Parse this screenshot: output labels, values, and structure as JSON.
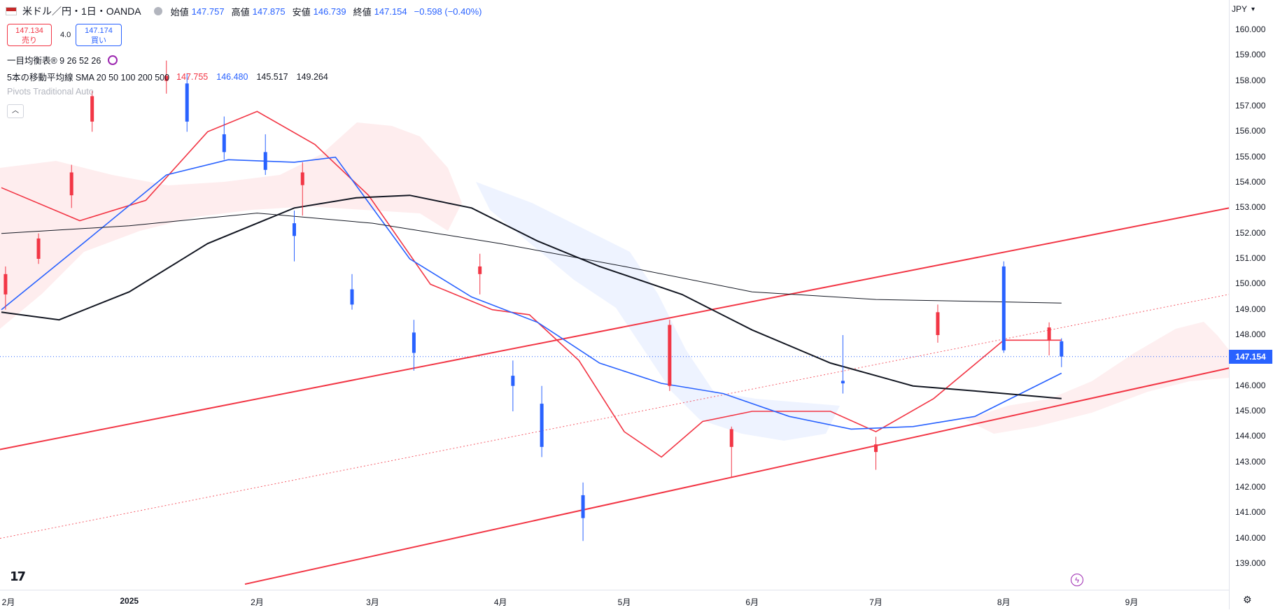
{
  "header": {
    "symbol": "米ドル／円・1日・OANDA",
    "open_label": "始値",
    "open": "147.757",
    "high_label": "高値",
    "high": "147.875",
    "low_label": "安値",
    "low": "146.739",
    "close_label": "終値",
    "close": "147.154",
    "change": "−0.598 (−0.40%)"
  },
  "trade": {
    "sell_price": "147.134",
    "sell_label": "売り",
    "spread": "4.0",
    "buy_price": "147.174",
    "buy_label": "買い"
  },
  "indicators": {
    "ichimoku": "一目均衡表® 9 26 52 26",
    "ma_label": "5本の移動平均線 SMA 20 50 100 200 500",
    "ma_vals": [
      "147.755",
      "146.480",
      "145.517",
      "149.264"
    ],
    "ma_colors": [
      "#f23645",
      "#2962ff",
      "#131722",
      "#131722"
    ],
    "pivots": "Pivots Traditional Auto",
    "collapse_icon": "chevron-up-icon"
  },
  "price_axis": {
    "currency": "JPY",
    "ticks": [
      "160.000",
      "159.000",
      "158.000",
      "157.000",
      "156.000",
      "155.000",
      "154.000",
      "153.000",
      "152.000",
      "151.000",
      "150.000",
      "149.000",
      "148.000",
      "147.000",
      "146.000",
      "145.000",
      "144.000",
      "143.000",
      "142.000",
      "141.000",
      "140.000",
      "139.000"
    ],
    "current_price": "147.154",
    "current_color": "#2962ff"
  },
  "time_axis": {
    "labels": [
      "2月",
      "2025",
      "2月",
      "3月",
      "4月",
      "5月",
      "6月",
      "7月",
      "8月",
      "9月"
    ]
  },
  "chart_data": {
    "type": "candlestick",
    "series_colors": {
      "up": "#f23645",
      "down": "#2962ff",
      "sma20": "#f23645",
      "sma50": "#2962ff",
      "sma100": "#131722",
      "sma200": "#131722"
    },
    "ylim": [
      138.5,
      160.5
    ],
    "candles": [
      {
        "x": "2024-12-02",
        "o": 149.6,
        "h": 150.7,
        "l": 149.0,
        "c": 150.4
      },
      {
        "x": "2024-12-10",
        "o": 151.0,
        "h": 152.0,
        "l": 150.8,
        "c": 151.8
      },
      {
        "x": "2024-12-18",
        "o": 153.5,
        "h": 154.7,
        "l": 153.0,
        "c": 154.4
      },
      {
        "x": "2024-12-23",
        "o": 156.4,
        "h": 157.6,
        "l": 156.0,
        "c": 157.4
      },
      {
        "x": "2025-01-10",
        "o": 158.0,
        "h": 158.8,
        "l": 157.5,
        "c": 158.2
      },
      {
        "x": "2025-01-15",
        "o": 157.9,
        "h": 158.3,
        "l": 156.0,
        "c": 156.4
      },
      {
        "x": "2025-01-24",
        "o": 155.9,
        "h": 156.6,
        "l": 154.9,
        "c": 155.2
      },
      {
        "x": "2025-02-03",
        "o": 155.2,
        "h": 155.9,
        "l": 154.3,
        "c": 154.5
      },
      {
        "x": "2025-02-10",
        "o": 152.4,
        "h": 152.9,
        "l": 150.9,
        "c": 151.9
      },
      {
        "x": "2025-02-12",
        "o": 153.9,
        "h": 154.8,
        "l": 152.7,
        "c": 154.4
      },
      {
        "x": "2025-02-24",
        "o": 149.8,
        "h": 150.4,
        "l": 149.0,
        "c": 149.2
      },
      {
        "x": "2025-03-11",
        "o": 148.1,
        "h": 148.6,
        "l": 146.6,
        "c": 147.3
      },
      {
        "x": "2025-03-27",
        "o": 150.4,
        "h": 151.2,
        "l": 149.6,
        "c": 150.7
      },
      {
        "x": "2025-04-04",
        "o": 146.4,
        "h": 147.0,
        "l": 145.0,
        "c": 146.0
      },
      {
        "x": "2025-04-11",
        "o": 145.3,
        "h": 146.0,
        "l": 143.2,
        "c": 143.6
      },
      {
        "x": "2025-04-21",
        "o": 141.7,
        "h": 142.2,
        "l": 139.9,
        "c": 140.8
      },
      {
        "x": "2025-05-12",
        "o": 146.0,
        "h": 148.6,
        "l": 145.8,
        "c": 148.4
      },
      {
        "x": "2025-05-27",
        "o": 143.6,
        "h": 144.4,
        "l": 142.4,
        "c": 144.3
      },
      {
        "x": "2025-06-23",
        "o": 146.2,
        "h": 148.0,
        "l": 145.7,
        "c": 146.1
      },
      {
        "x": "2025-07-01",
        "o": 143.4,
        "h": 144.0,
        "l": 142.7,
        "c": 143.7
      },
      {
        "x": "2025-07-16",
        "o": 148.0,
        "h": 149.2,
        "l": 147.7,
        "c": 148.9
      },
      {
        "x": "2025-08-01",
        "o": 150.7,
        "h": 150.9,
        "l": 147.3,
        "c": 147.4
      },
      {
        "x": "2025-08-12",
        "o": 147.8,
        "h": 148.5,
        "l": 147.2,
        "c": 148.3
      },
      {
        "x": "2025-08-15",
        "o": 147.757,
        "h": 147.875,
        "l": 146.739,
        "c": 147.154
      }
    ]
  }
}
